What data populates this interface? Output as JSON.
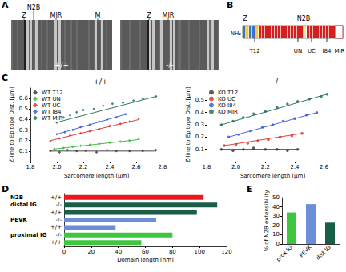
{
  "panel_labels": [
    "A",
    "B",
    "C",
    "D",
    "E"
  ],
  "panel_a": {
    "images": [
      {
        "labels": [
          "N2B",
          "Z",
          "MIR",
          "M"
        ],
        "caption": "+/+"
      },
      {
        "labels": [
          "Z",
          "MIR"
        ],
        "caption": "-/-"
      }
    ]
  },
  "panel_b": {
    "labels": [
      "Z",
      "N2B",
      "NH₂",
      "MIR"
    ],
    "epitopes": [
      "T12",
      "UN",
      "UC",
      "I84"
    ]
  },
  "chart_data": [
    {
      "type": "scatter",
      "title": "+/+",
      "x_label": "Sarcomere length [µm]",
      "y_label": "Z-line to Epitope Dist. [µm]",
      "xlim": [
        1.8,
        2.8
      ],
      "xticks": [
        1.8,
        {
          "value": 2,
          "label": "2.0"
        },
        2.2,
        2.4,
        2.6,
        2.8
      ],
      "ylim": [
        0,
        0.7
      ],
      "yticks": [
        0.1,
        0.2,
        0.3,
        0.4,
        0.5,
        0.6
      ],
      "legend": "upper left",
      "grid": false,
      "marker": "diamond",
      "series": [
        {
          "name": "WT T12",
          "color": "#333333",
          "x": [
            1.95,
            2.02,
            2.08,
            2.15,
            2.22,
            2.3,
            2.38,
            2.45,
            2.55,
            2.65,
            2.75
          ],
          "values": [
            0.1,
            0.09,
            0.11,
            0.1,
            0.1,
            0.09,
            0.11,
            0.1,
            0.1,
            0.1,
            0.11
          ],
          "fit": {
            "x": [
              1.95,
              2.75
            ],
            "values": [
              0.1,
              0.1
            ]
          }
        },
        {
          "name": "WT UN",
          "color": "#2eb82e",
          "x": [
            1.98,
            2.05,
            2.12,
            2.18,
            2.25,
            2.32,
            2.4,
            2.48,
            2.55,
            2.62
          ],
          "values": [
            0.12,
            0.13,
            0.14,
            0.15,
            0.16,
            0.17,
            0.18,
            0.19,
            0.2,
            0.22
          ],
          "fit": {
            "x": [
              1.98,
              2.62
            ],
            "values": [
              0.12,
              0.21
            ]
          }
        },
        {
          "name": "WT UC",
          "color": "#e02828",
          "x": [
            1.95,
            2.02,
            2.1,
            2.18,
            2.25,
            2.32,
            2.4,
            2.48,
            2.55,
            2.62
          ],
          "values": [
            0.19,
            0.22,
            0.25,
            0.27,
            0.29,
            0.31,
            0.34,
            0.36,
            0.38,
            0.41
          ],
          "fit": {
            "x": [
              1.95,
              2.62
            ],
            "values": [
              0.2,
              0.4
            ]
          }
        },
        {
          "name": "WT I84",
          "color": "#3355dd",
          "x": [
            2.0,
            2.06,
            2.12,
            2.18,
            2.25,
            2.32,
            2.38,
            2.45,
            2.52
          ],
          "values": [
            0.26,
            0.28,
            0.3,
            0.33,
            0.35,
            0.38,
            0.4,
            0.42,
            0.45
          ],
          "fit": {
            "x": [
              2.0,
              2.52
            ],
            "values": [
              0.26,
              0.45
            ]
          }
        },
        {
          "name": "WT MIR",
          "color": "#1a6b4a",
          "x": [
            2.0,
            2.05,
            2.1,
            2.15,
            2.2,
            2.28,
            2.35,
            2.42,
            2.5,
            2.58,
            2.65,
            2.75
          ],
          "values": [
            0.37,
            0.42,
            0.44,
            0.47,
            0.49,
            0.5,
            0.53,
            0.55,
            0.56,
            0.58,
            0.6,
            0.62
          ],
          "fit": {
            "x": [
              2.02,
              2.75
            ],
            "values": [
              0.38,
              0.62
            ]
          }
        }
      ]
    },
    {
      "type": "scatter",
      "title": "-/-",
      "x_label": "Sarcomere length [µm]",
      "y_label": "Z-line to Epitope Dist. [µm]",
      "xlim": [
        1.8,
        2.7
      ],
      "xticks": [
        1.8,
        {
          "value": 2,
          "label": "2.0"
        },
        2.2,
        2.4,
        2.6
      ],
      "ylim": [
        0,
        0.6
      ],
      "yticks": [
        0.1,
        0.2,
        0.3,
        0.4,
        0.5
      ],
      "legend": "upper left",
      "grid": false,
      "marker": "circle",
      "series": [
        {
          "name": "KO T12",
          "color": "#333333",
          "x": [
            1.9,
            1.98,
            2.05,
            2.12,
            2.2,
            2.28,
            2.35,
            2.42
          ],
          "values": [
            0.1,
            0.09,
            0.1,
            0.11,
            0.1,
            0.1,
            0.09,
            0.1
          ],
          "fit": {
            "x": [
              1.9,
              2.42
            ],
            "values": [
              0.1,
              0.1
            ]
          }
        },
        {
          "name": "KO UC",
          "color": "#e02828",
          "x": [
            1.92,
            2.0,
            2.08,
            2.15,
            2.22,
            2.3,
            2.38,
            2.45
          ],
          "values": [
            0.13,
            0.14,
            0.15,
            0.17,
            0.18,
            0.2,
            0.21,
            0.23
          ],
          "fit": {
            "x": [
              1.92,
              2.45
            ],
            "values": [
              0.13,
              0.23
            ]
          }
        },
        {
          "name": "KO I84",
          "color": "#3355dd",
          "x": [
            1.95,
            2.02,
            2.1,
            2.18,
            2.25,
            2.32,
            2.4,
            2.48,
            2.55
          ],
          "values": [
            0.2,
            0.22,
            0.25,
            0.28,
            0.3,
            0.33,
            0.35,
            0.38,
            0.4
          ],
          "fit": {
            "x": [
              1.95,
              2.55
            ],
            "values": [
              0.2,
              0.4
            ]
          }
        },
        {
          "name": "KO MIR",
          "color": "#1a6b4a",
          "x": [
            1.9,
            1.98,
            2.05,
            2.12,
            2.2,
            2.28,
            2.35,
            2.42,
            2.5,
            2.58,
            2.62
          ],
          "values": [
            0.3,
            0.33,
            0.36,
            0.39,
            0.41,
            0.44,
            0.47,
            0.49,
            0.51,
            0.53,
            0.55
          ],
          "fit": {
            "x": [
              1.9,
              2.62
            ],
            "values": [
              0.3,
              0.55
            ]
          }
        }
      ]
    },
    {
      "type": "bar",
      "orientation": "horizontal",
      "x_label": "Domain length [nm]",
      "categories": [
        "+/+",
        "-/-",
        "+/+",
        "-/-",
        "+/+",
        "-/-",
        "+/+"
      ],
      "group_labels": [
        "N2B",
        "distal IG",
        null,
        "PEVK",
        null,
        "proximal IG",
        null
      ],
      "values": [
        103,
        113,
        98,
        68,
        38,
        80,
        57
      ],
      "colors": [
        "#e8191f",
        "#1a5e47",
        "#1a5e47",
        "#6a8fd8",
        "#6a8fd8",
        "#3ec63e",
        "#3ec63e"
      ],
      "xlim": [
        0,
        120
      ],
      "xticks": [
        0,
        20,
        40,
        60,
        80,
        100,
        120
      ],
      "grid": false
    },
    {
      "type": "bar",
      "y_label": "% of N2B extensibility",
      "categories": [
        "prox IG",
        "PEVK",
        "dist IG"
      ],
      "values": [
        34,
        43,
        23
      ],
      "colors": [
        "#3ec63e",
        "#6a8fd8",
        "#1a5e47"
      ],
      "ylim": [
        0,
        50
      ],
      "yticks": [
        0,
        10,
        20,
        30,
        40,
        50
      ],
      "grid": false
    }
  ]
}
